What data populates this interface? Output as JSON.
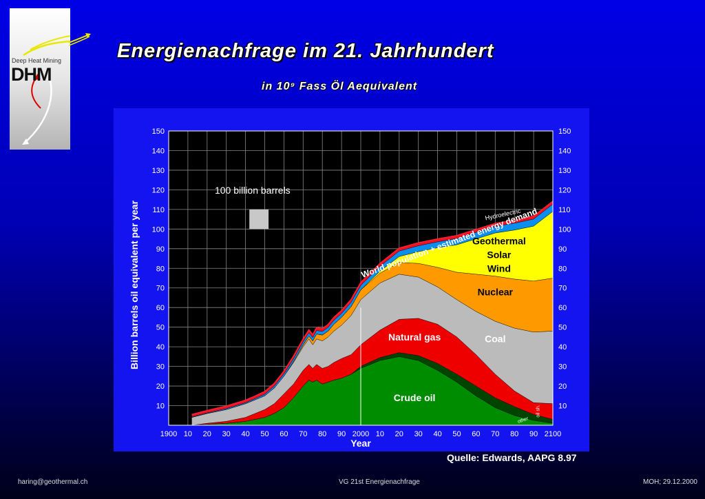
{
  "slide": {
    "title": "Energienachfrage im 21. Jahrhundert",
    "subtitle": "in 10⁹ Fass Öl Aequivalent",
    "source": "Quelle: Edwards, AAPG  8.97",
    "footer_left": "haring@geothermal.ch",
    "footer_center": "VG 21st Energienachfrage",
    "footer_right": "MOH; 29.12.2000"
  },
  "logo": {
    "line1": "Deep Heat Mining",
    "line2": "DHM",
    "icon": "arrows-icon"
  },
  "chart_data": {
    "type": "area",
    "stacked": true,
    "xlabel": "Year",
    "ylabel": "Billion barrels oil equivalent per year",
    "xlim": [
      1900,
      2100
    ],
    "ylim": [
      0,
      150
    ],
    "x_tick_labels": [
      "1900",
      "10",
      "20",
      "30",
      "40",
      "50",
      "60",
      "70",
      "80",
      "90",
      "2000",
      "10",
      "20",
      "30",
      "40",
      "50",
      "60",
      "70",
      "80",
      "90",
      "2100"
    ],
    "y_ticks": [
      10,
      20,
      30,
      40,
      50,
      60,
      70,
      80,
      90,
      100,
      110,
      120,
      130,
      140,
      150
    ],
    "grid": true,
    "reference_year": 2000,
    "x": [
      1912,
      1920,
      1930,
      1940,
      1945,
      1950,
      1955,
      1960,
      1965,
      1970,
      1973,
      1975,
      1977,
      1980,
      1983,
      1986,
      1990,
      1995,
      2000,
      2010,
      2020,
      2030,
      2040,
      2050,
      2060,
      2070,
      2080,
      2090,
      2100
    ],
    "series": [
      {
        "name": "Crude oil",
        "color": "#008c00",
        "values": [
          0,
          0.5,
          1,
          2,
          3,
          4,
          6,
          9,
          14,
          20,
          23,
          22,
          23,
          21,
          22,
          23,
          24,
          26,
          29,
          33,
          35,
          33,
          28,
          22,
          15,
          9,
          5,
          2.5,
          1
        ]
      },
      {
        "name": "",
        "color": "#004400",
        "values": [
          0,
          0,
          0,
          0,
          0,
          0,
          0,
          0,
          0,
          0,
          0,
          0,
          0,
          0,
          0,
          0,
          0,
          0,
          1,
          1.5,
          2,
          2.5,
          3.5,
          4,
          5,
          5,
          4.5,
          3,
          2
        ]
      },
      {
        "name": "Natural gas",
        "color": "#ee0000",
        "values": [
          0,
          0.5,
          1,
          2,
          3,
          4,
          5,
          7,
          7,
          8,
          8,
          7,
          8,
          8,
          8,
          9,
          10,
          10,
          11,
          14,
          17,
          19,
          20,
          19,
          16,
          12,
          8,
          6,
          8
        ]
      },
      {
        "name": "Coal",
        "color": "#bbbbbb",
        "values": [
          4,
          5,
          6,
          7,
          7,
          7,
          8,
          9,
          11,
          12,
          13,
          12,
          13,
          14,
          15,
          16,
          17,
          20,
          23,
          24,
          23,
          21,
          19,
          19,
          22,
          27,
          32,
          36,
          37
        ]
      },
      {
        "name": "Nuclear",
        "color": "#ff9900",
        "values": [
          0,
          0,
          0,
          0,
          0,
          0,
          0,
          0,
          0.5,
          1,
          1.5,
          2,
          2.5,
          3,
          3,
          3.5,
          4,
          4.5,
          5,
          5,
          6,
          7,
          10,
          14,
          19,
          23,
          25,
          26,
          27
        ]
      },
      {
        "name": "Geothermal Solar Wind",
        "color": "#ffff00",
        "values": [
          0,
          0,
          0,
          0,
          0,
          0,
          0,
          0,
          0,
          0,
          0,
          0,
          0,
          0,
          0,
          0,
          0,
          0,
          0,
          1,
          3,
          6,
          10,
          14,
          18,
          22,
          25,
          28,
          34
        ]
      },
      {
        "name": "Hydroelectric",
        "color": "#0a8ff0",
        "values": [
          0.3,
          0.3,
          0.5,
          0.5,
          0.6,
          0.8,
          1,
          1.2,
          1.4,
          1.6,
          1.7,
          1.7,
          1.8,
          1.8,
          1.9,
          2,
          2,
          2.2,
          2.3,
          2.5,
          2.8,
          3,
          3,
          3.2,
          3.3,
          3.4,
          3.5,
          3.6,
          3.7
        ]
      },
      {
        "name": "",
        "color": "#ee1122",
        "values": [
          1.2,
          1.2,
          1.3,
          1.3,
          1.3,
          1.4,
          1.4,
          1.4,
          1.4,
          1.5,
          1.5,
          1.5,
          1.5,
          1.5,
          1.5,
          1.5,
          1.5,
          1.5,
          1.5,
          1.5,
          1.5,
          1.5,
          1.5,
          1.5,
          1.5,
          1.5,
          1.5,
          1.5,
          1.5
        ]
      }
    ],
    "area_labels": [
      {
        "text": "Crude oil",
        "x": 2028,
        "y": 14,
        "color": "#ffffff"
      },
      {
        "text": "Natural gas",
        "x": 2028,
        "y": 45,
        "color": "#ffffff"
      },
      {
        "text": "Coal",
        "x": 2070,
        "y": 44,
        "color": "#ffffff"
      },
      {
        "text": "Nuclear",
        "x": 2070,
        "y": 68,
        "color": "#000000"
      },
      {
        "text": "Geothermal",
        "x": 2072,
        "y": 94,
        "color": "#000000"
      },
      {
        "text": "Solar",
        "x": 2072,
        "y": 87,
        "color": "#000000"
      },
      {
        "text": "Wind",
        "x": 2072,
        "y": 80,
        "color": "#000000"
      }
    ],
    "curve_label": "World population + estimated energy demand",
    "hydro_label": "Hydroelectric",
    "oil_sh_label": "oil sh.",
    "other_label": "other",
    "scale_box": {
      "label": "100 billion barrels",
      "x0": 1942,
      "x1": 1952,
      "y0": 100,
      "y1": 110
    }
  }
}
